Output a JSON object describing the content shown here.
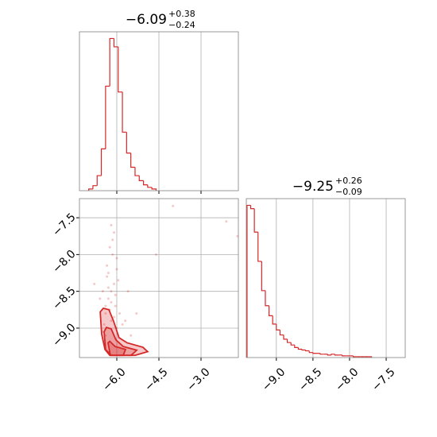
{
  "chart_data": [
    {
      "type": "histogram",
      "title": "−6.09",
      "title_upper": "+0.38",
      "title_lower": "−0.24",
      "color": "#d62728",
      "bins": [
        -7.0,
        -6.85,
        -6.7,
        -6.55,
        -6.4,
        -6.25,
        -6.1,
        -5.95,
        -5.8,
        -5.65,
        -5.5,
        -5.35,
        -5.2,
        -5.05,
        -4.9,
        -4.75,
        -4.6
      ],
      "values": [
        2,
        6,
        18,
        50,
        125,
        182,
        172,
        118,
        70,
        45,
        28,
        18,
        12,
        7,
        4,
        2
      ],
      "xlim": [
        -7.33,
        -1.67
      ],
      "xticks": [
        -6.0,
        -4.5,
        -3.0
      ],
      "ylim": [
        0,
        190
      ],
      "grid": true
    },
    {
      "type": "scatter",
      "color": "#d62728",
      "x": [
        -6.3,
        -6.1,
        -6.4,
        -6.0,
        -6.2,
        -6.5,
        -5.9,
        -6.35,
        -6.15,
        -6.25,
        -6.05,
        -6.45,
        -6.3,
        -6.2,
        -6.1,
        -6.0,
        -6.4,
        -6.6,
        -5.8,
        -6.25,
        -6.15,
        -6.35,
        -5.95,
        -6.5,
        -6.2,
        -6.05,
        -6.3,
        -6.1,
        -5.7,
        -6.4,
        -4.0,
        -2.1,
        -1.7,
        -4.6,
        -5.3,
        -5.6,
        -6.8,
        -5.5,
        -6.2,
        -6.0
      ],
      "y": [
        -8.6,
        -8.4,
        -8.7,
        -8.2,
        -8.9,
        -8.5,
        -8.8,
        -8.3,
        -8.0,
        -8.75,
        -8.55,
        -8.95,
        -8.45,
        -8.65,
        -8.85,
        -9.0,
        -9.1,
        -8.6,
        -8.95,
        -7.9,
        -7.8,
        -8.15,
        -8.35,
        -9.05,
        -8.5,
        -8.7,
        -8.25,
        -7.7,
        -8.9,
        -8.8,
        -7.34,
        -7.55,
        -7.75,
        -8.0,
        -8.8,
        -8.5,
        -8.4,
        -9.1,
        -7.6,
        -8.05
      ],
      "contours": [
        {
          "x": [
            -6.59,
            -6.54,
            -6.42,
            -6.25,
            -5.35,
            -4.9,
            -5.07,
            -5.63,
            -5.92,
            -6.11,
            -6.28,
            -6.48
          ],
          "y": [
            -8.78,
            -9.08,
            -9.29,
            -9.37,
            -9.37,
            -9.32,
            -9.26,
            -9.2,
            -9.13,
            -8.91,
            -8.75,
            -8.73
          ]
        },
        {
          "x": [
            -6.45,
            -6.4,
            -6.2,
            -5.49,
            -5.29,
            -5.77,
            -6.03,
            -6.2,
            -6.37
          ],
          "y": [
            -9.05,
            -9.29,
            -9.37,
            -9.37,
            -9.3,
            -9.25,
            -9.16,
            -9.01,
            -8.99
          ]
        },
        {
          "x": [
            -6.31,
            -6.23,
            -5.77,
            -5.69,
            -6.06,
            -6.25
          ],
          "y": [
            -9.2,
            -9.37,
            -9.37,
            -9.29,
            -9.25,
            -9.18
          ]
        }
      ],
      "xlim": [
        -7.33,
        -1.67
      ],
      "xticks": [
        {
          "value": -6.0,
          "label": "−6.0"
        },
        {
          "value": -4.5,
          "label": "−4.5"
        },
        {
          "value": -3.0,
          "label": "−3.0"
        }
      ],
      "ylim": [
        -9.4,
        -7.24
      ],
      "yticks": [
        {
          "value": -7.5,
          "label": "−7.5"
        },
        {
          "value": -8.0,
          "label": "−8.0"
        },
        {
          "value": -8.5,
          "label": "−8.5"
        },
        {
          "value": -9.0,
          "label": "−9.0"
        }
      ],
      "grid": true
    },
    {
      "type": "histogram",
      "title": "−9.25",
      "title_upper": "+0.26",
      "title_lower": "−0.09",
      "color": "#d62728",
      "bins": [
        -9.4,
        -9.35,
        -9.3,
        -9.25,
        -9.2,
        -9.15,
        -9.1,
        -9.05,
        -9.0,
        -8.95,
        -8.9,
        -8.85,
        -8.8,
        -8.75,
        -8.7,
        -8.65,
        -8.6,
        -8.55,
        -8.5,
        -8.45,
        -8.4,
        -8.35,
        -8.3,
        -8.25,
        -8.2,
        -8.15,
        -8.1,
        -8.05,
        -8.0,
        -7.95,
        -7.9,
        -7.85,
        -7.8,
        -7.75,
        -7.7
      ],
      "values": [
        182,
        178,
        150,
        115,
        80,
        62,
        50,
        40,
        33,
        27,
        22,
        18,
        15,
        12,
        10,
        9,
        8,
        6,
        5,
        5,
        4,
        4,
        3,
        4,
        3,
        3,
        2,
        2,
        2,
        1,
        1,
        1,
        1,
        1
      ],
      "xlim": [
        -9.41,
        -7.24
      ],
      "xticks": [
        {
          "value": -9.0,
          "label": "−9.0"
        },
        {
          "value": -8.5,
          "label": "−8.5"
        },
        {
          "value": -8.0,
          "label": "−8.0"
        },
        {
          "value": -7.5,
          "label": "−7.5"
        }
      ],
      "ylim": [
        0,
        190
      ],
      "grid": true
    }
  ]
}
